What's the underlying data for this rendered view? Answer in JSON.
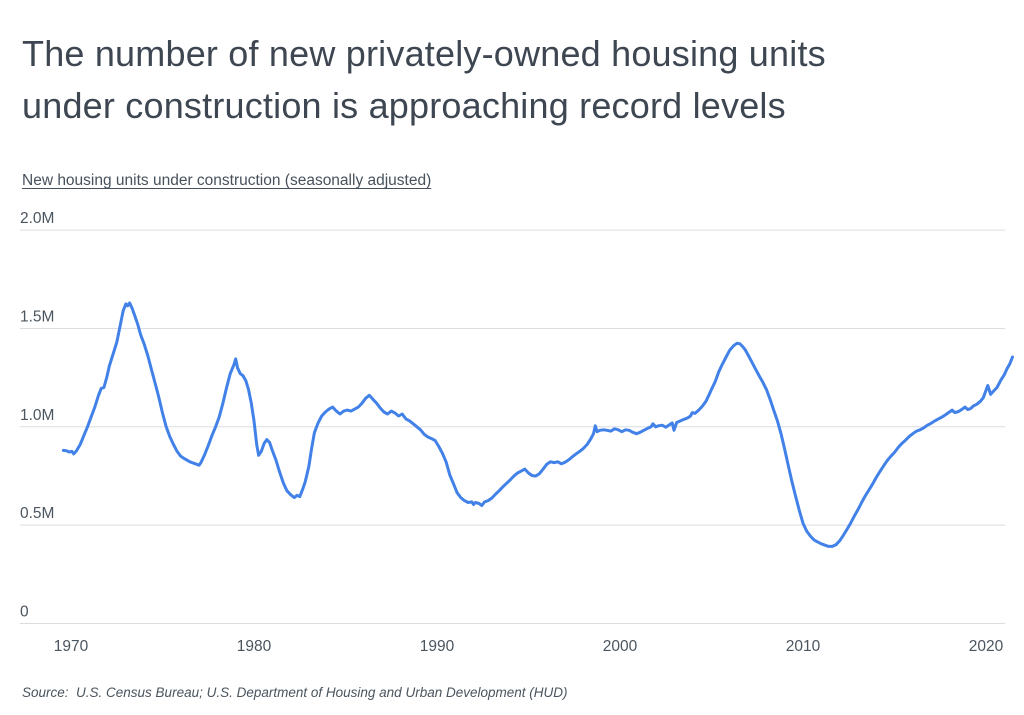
{
  "header": {
    "title_line1": "The number of new privately-owned housing units",
    "title_line2": "under construction is approaching record levels"
  },
  "footer": {
    "source": "Source:  U.S. Census Bureau; U.S. Department of Housing and Urban Development (HUD)"
  },
  "chart_data": {
    "type": "line",
    "title": "New housing units under construction (seasonally adjusted)",
    "values_unit": "millions of housing units",
    "line_color": "#4181E8",
    "grid_color": "#DADDE1",
    "label_color": "#4B555F",
    "grid_on": true,
    "legend": "none",
    "x_axis": {
      "min": 1969.5,
      "max": 2021.6,
      "ticks": [
        1970,
        1980,
        1990,
        2000,
        2010,
        2020
      ]
    },
    "y_axis": {
      "min": 0,
      "max": 2.0,
      "ticks": [
        {
          "label": "2.0M",
          "value": 2.0
        },
        {
          "label": "1.5M",
          "value": 1.5
        },
        {
          "label": "1.0M",
          "value": 1.0
        },
        {
          "label": "0.5M",
          "value": 0.5
        },
        {
          "label": "0",
          "value": 0
        }
      ]
    },
    "series": [
      {
        "name": "New housing units under construction (seasonally adjusted)",
        "points": [
          [
            1969.58,
            0.88
          ],
          [
            1969.75,
            0.878
          ],
          [
            1969.9,
            0.872
          ],
          [
            1970.05,
            0.875
          ],
          [
            1970.15,
            0.862
          ],
          [
            1970.3,
            0.878
          ],
          [
            1970.5,
            0.91
          ],
          [
            1970.7,
            0.955
          ],
          [
            1970.9,
            1.0
          ],
          [
            1971.1,
            1.05
          ],
          [
            1971.3,
            1.1
          ],
          [
            1971.5,
            1.16
          ],
          [
            1971.65,
            1.195
          ],
          [
            1971.8,
            1.2
          ],
          [
            1971.95,
            1.25
          ],
          [
            1972.1,
            1.31
          ],
          [
            1972.3,
            1.37
          ],
          [
            1972.5,
            1.43
          ],
          [
            1972.7,
            1.52
          ],
          [
            1972.85,
            1.59
          ],
          [
            1973.0,
            1.625
          ],
          [
            1973.1,
            1.615
          ],
          [
            1973.2,
            1.63
          ],
          [
            1973.35,
            1.6
          ],
          [
            1973.5,
            1.56
          ],
          [
            1973.65,
            1.52
          ],
          [
            1973.8,
            1.47
          ],
          [
            1974.0,
            1.42
          ],
          [
            1974.2,
            1.36
          ],
          [
            1974.4,
            1.29
          ],
          [
            1974.6,
            1.22
          ],
          [
            1974.8,
            1.15
          ],
          [
            1975.0,
            1.07
          ],
          [
            1975.2,
            1.0
          ],
          [
            1975.4,
            0.95
          ],
          [
            1975.6,
            0.91
          ],
          [
            1975.8,
            0.875
          ],
          [
            1976.0,
            0.85
          ],
          [
            1976.2,
            0.838
          ],
          [
            1976.5,
            0.822
          ],
          [
            1976.8,
            0.812
          ],
          [
            1977.0,
            0.805
          ],
          [
            1977.1,
            0.818
          ],
          [
            1977.3,
            0.858
          ],
          [
            1977.5,
            0.905
          ],
          [
            1977.7,
            0.955
          ],
          [
            1977.9,
            1.0
          ],
          [
            1978.1,
            1.05
          ],
          [
            1978.3,
            1.12
          ],
          [
            1978.5,
            1.2
          ],
          [
            1978.7,
            1.27
          ],
          [
            1978.9,
            1.315
          ],
          [
            1979.0,
            1.345
          ],
          [
            1979.1,
            1.3
          ],
          [
            1979.25,
            1.27
          ],
          [
            1979.4,
            1.26
          ],
          [
            1979.55,
            1.235
          ],
          [
            1979.7,
            1.19
          ],
          [
            1979.85,
            1.12
          ],
          [
            1980.0,
            1.03
          ],
          [
            1980.15,
            0.91
          ],
          [
            1980.25,
            0.855
          ],
          [
            1980.4,
            0.875
          ],
          [
            1980.55,
            0.915
          ],
          [
            1980.7,
            0.935
          ],
          [
            1980.85,
            0.92
          ],
          [
            1981.0,
            0.88
          ],
          [
            1981.2,
            0.83
          ],
          [
            1981.4,
            0.77
          ],
          [
            1981.6,
            0.715
          ],
          [
            1981.8,
            0.675
          ],
          [
            1982.0,
            0.655
          ],
          [
            1982.2,
            0.64
          ],
          [
            1982.35,
            0.652
          ],
          [
            1982.5,
            0.645
          ],
          [
            1982.65,
            0.68
          ],
          [
            1982.8,
            0.72
          ],
          [
            1983.0,
            0.8
          ],
          [
            1983.15,
            0.89
          ],
          [
            1983.3,
            0.97
          ],
          [
            1983.5,
            1.02
          ],
          [
            1983.7,
            1.055
          ],
          [
            1983.9,
            1.075
          ],
          [
            1984.1,
            1.09
          ],
          [
            1984.3,
            1.1
          ],
          [
            1984.5,
            1.08
          ],
          [
            1984.7,
            1.065
          ],
          [
            1984.9,
            1.08
          ],
          [
            1985.1,
            1.085
          ],
          [
            1985.3,
            1.08
          ],
          [
            1985.5,
            1.09
          ],
          [
            1985.7,
            1.1
          ],
          [
            1985.9,
            1.12
          ],
          [
            1986.1,
            1.145
          ],
          [
            1986.3,
            1.16
          ],
          [
            1986.5,
            1.14
          ],
          [
            1986.7,
            1.12
          ],
          [
            1986.9,
            1.095
          ],
          [
            1987.1,
            1.075
          ],
          [
            1987.3,
            1.065
          ],
          [
            1987.5,
            1.08
          ],
          [
            1987.7,
            1.07
          ],
          [
            1987.9,
            1.055
          ],
          [
            1988.1,
            1.065
          ],
          [
            1988.3,
            1.04
          ],
          [
            1988.5,
            1.03
          ],
          [
            1988.7,
            1.015
          ],
          [
            1988.9,
            1.0
          ],
          [
            1989.1,
            0.985
          ],
          [
            1989.3,
            0.962
          ],
          [
            1989.5,
            0.948
          ],
          [
            1989.7,
            0.94
          ],
          [
            1989.9,
            0.93
          ],
          [
            1990.1,
            0.9
          ],
          [
            1990.3,
            0.865
          ],
          [
            1990.5,
            0.82
          ],
          [
            1990.7,
            0.755
          ],
          [
            1990.9,
            0.71
          ],
          [
            1991.1,
            0.665
          ],
          [
            1991.3,
            0.64
          ],
          [
            1991.5,
            0.625
          ],
          [
            1991.7,
            0.615
          ],
          [
            1991.9,
            0.618
          ],
          [
            1992.0,
            0.605
          ],
          [
            1992.1,
            0.615
          ],
          [
            1992.3,
            0.61
          ],
          [
            1992.45,
            0.6
          ],
          [
            1992.6,
            0.618
          ],
          [
            1992.8,
            0.625
          ],
          [
            1993.0,
            0.638
          ],
          [
            1993.2,
            0.658
          ],
          [
            1993.4,
            0.675
          ],
          [
            1993.6,
            0.695
          ],
          [
            1993.8,
            0.712
          ],
          [
            1994.0,
            0.73
          ],
          [
            1994.2,
            0.75
          ],
          [
            1994.4,
            0.765
          ],
          [
            1994.6,
            0.775
          ],
          [
            1994.8,
            0.785
          ],
          [
            1995.0,
            0.765
          ],
          [
            1995.2,
            0.752
          ],
          [
            1995.4,
            0.75
          ],
          [
            1995.6,
            0.762
          ],
          [
            1995.8,
            0.785
          ],
          [
            1996.0,
            0.81
          ],
          [
            1996.2,
            0.822
          ],
          [
            1996.4,
            0.818
          ],
          [
            1996.6,
            0.822
          ],
          [
            1996.8,
            0.812
          ],
          [
            1997.0,
            0.82
          ],
          [
            1997.2,
            0.832
          ],
          [
            1997.4,
            0.848
          ],
          [
            1997.6,
            0.862
          ],
          [
            1997.8,
            0.875
          ],
          [
            1998.0,
            0.89
          ],
          [
            1998.2,
            0.91
          ],
          [
            1998.4,
            0.938
          ],
          [
            1998.55,
            0.965
          ],
          [
            1998.65,
            1.005
          ],
          [
            1998.75,
            0.975
          ],
          [
            1998.9,
            0.982
          ],
          [
            1999.1,
            0.985
          ],
          [
            1999.3,
            0.982
          ],
          [
            1999.5,
            0.978
          ],
          [
            1999.7,
            0.99
          ],
          [
            1999.9,
            0.985
          ],
          [
            2000.1,
            0.975
          ],
          [
            2000.3,
            0.985
          ],
          [
            2000.5,
            0.982
          ],
          [
            2000.7,
            0.972
          ],
          [
            2000.9,
            0.965
          ],
          [
            2001.1,
            0.972
          ],
          [
            2001.3,
            0.982
          ],
          [
            2001.5,
            0.992
          ],
          [
            2001.7,
            1.0
          ],
          [
            2001.8,
            1.015
          ],
          [
            2001.95,
            1.0
          ],
          [
            2002.1,
            1.005
          ],
          [
            2002.3,
            1.008
          ],
          [
            2002.5,
            0.998
          ],
          [
            2002.7,
            1.01
          ],
          [
            2002.85,
            1.02
          ],
          [
            2002.95,
            0.982
          ],
          [
            2003.1,
            1.022
          ],
          [
            2003.3,
            1.03
          ],
          [
            2003.5,
            1.038
          ],
          [
            2003.7,
            1.045
          ],
          [
            2003.85,
            1.055
          ],
          [
            2003.95,
            1.072
          ],
          [
            2004.1,
            1.068
          ],
          [
            2004.3,
            1.085
          ],
          [
            2004.5,
            1.105
          ],
          [
            2004.7,
            1.13
          ],
          [
            2004.85,
            1.16
          ],
          [
            2005.0,
            1.19
          ],
          [
            2005.2,
            1.23
          ],
          [
            2005.4,
            1.28
          ],
          [
            2005.6,
            1.32
          ],
          [
            2005.8,
            1.355
          ],
          [
            2006.0,
            1.39
          ],
          [
            2006.2,
            1.412
          ],
          [
            2006.4,
            1.425
          ],
          [
            2006.55,
            1.422
          ],
          [
            2006.7,
            1.408
          ],
          [
            2006.85,
            1.39
          ],
          [
            2007.0,
            1.365
          ],
          [
            2007.2,
            1.33
          ],
          [
            2007.4,
            1.295
          ],
          [
            2007.6,
            1.26
          ],
          [
            2007.8,
            1.228
          ],
          [
            2008.0,
            1.19
          ],
          [
            2008.2,
            1.14
          ],
          [
            2008.4,
            1.085
          ],
          [
            2008.6,
            1.03
          ],
          [
            2008.8,
            0.965
          ],
          [
            2009.0,
            0.885
          ],
          [
            2009.2,
            0.8
          ],
          [
            2009.4,
            0.72
          ],
          [
            2009.6,
            0.645
          ],
          [
            2009.8,
            0.575
          ],
          [
            2010.0,
            0.51
          ],
          [
            2010.2,
            0.47
          ],
          [
            2010.4,
            0.445
          ],
          [
            2010.6,
            0.425
          ],
          [
            2010.8,
            0.415
          ],
          [
            2011.0,
            0.405
          ],
          [
            2011.2,
            0.398
          ],
          [
            2011.4,
            0.392
          ],
          [
            2011.6,
            0.392
          ],
          [
            2011.8,
            0.4
          ],
          [
            2012.0,
            0.42
          ],
          [
            2012.2,
            0.448
          ],
          [
            2012.4,
            0.478
          ],
          [
            2012.6,
            0.51
          ],
          [
            2012.8,
            0.545
          ],
          [
            2013.0,
            0.578
          ],
          [
            2013.2,
            0.615
          ],
          [
            2013.4,
            0.648
          ],
          [
            2013.6,
            0.678
          ],
          [
            2013.8,
            0.708
          ],
          [
            2014.0,
            0.742
          ],
          [
            2014.2,
            0.772
          ],
          [
            2014.4,
            0.8
          ],
          [
            2014.6,
            0.828
          ],
          [
            2014.8,
            0.85
          ],
          [
            2015.0,
            0.87
          ],
          [
            2015.2,
            0.895
          ],
          [
            2015.4,
            0.915
          ],
          [
            2015.6,
            0.932
          ],
          [
            2015.8,
            0.95
          ],
          [
            2016.0,
            0.965
          ],
          [
            2016.2,
            0.978
          ],
          [
            2016.4,
            0.985
          ],
          [
            2016.6,
            0.995
          ],
          [
            2016.8,
            1.008
          ],
          [
            2017.0,
            1.018
          ],
          [
            2017.2,
            1.03
          ],
          [
            2017.4,
            1.04
          ],
          [
            2017.6,
            1.05
          ],
          [
            2017.8,
            1.062
          ],
          [
            2018.0,
            1.075
          ],
          [
            2018.15,
            1.085
          ],
          [
            2018.3,
            1.072
          ],
          [
            2018.5,
            1.078
          ],
          [
            2018.7,
            1.09
          ],
          [
            2018.85,
            1.1
          ],
          [
            2019.0,
            1.088
          ],
          [
            2019.15,
            1.092
          ],
          [
            2019.3,
            1.105
          ],
          [
            2019.5,
            1.115
          ],
          [
            2019.7,
            1.13
          ],
          [
            2019.85,
            1.148
          ],
          [
            2020.0,
            1.185
          ],
          [
            2020.1,
            1.21
          ],
          [
            2020.25,
            1.165
          ],
          [
            2020.4,
            1.18
          ],
          [
            2020.6,
            1.2
          ],
          [
            2020.8,
            1.235
          ],
          [
            2021.0,
            1.265
          ],
          [
            2021.15,
            1.295
          ],
          [
            2021.3,
            1.32
          ],
          [
            2021.45,
            1.355
          ]
        ]
      }
    ]
  }
}
